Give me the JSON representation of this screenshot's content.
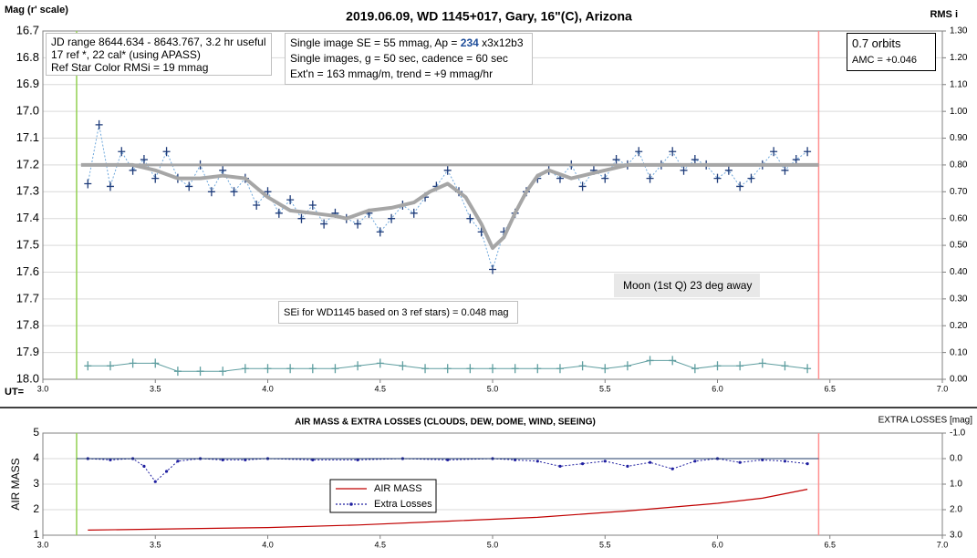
{
  "chart_data": [
    {
      "type": "line",
      "title": "2019.06.09, WD 1145+017, Gary, 16\"(C), Arizona",
      "y_label": "Mag (r' scale)",
      "y2_label": "RMS i",
      "x_label": "UT=",
      "xlim": [
        3.0,
        7.0
      ],
      "xticks": [
        {
          "value": 3.0,
          "label": "3.0"
        },
        3.5,
        {
          "value": 4.0,
          "label": "4.0"
        },
        4.5,
        {
          "value": 5.0,
          "label": "5.0"
        },
        5.5,
        {
          "value": 6.0,
          "label": "6.0"
        },
        6.5,
        {
          "value": 7.0,
          "label": "7.0"
        }
      ],
      "ylim": [
        16.7,
        18.0
      ],
      "y_inverted": true,
      "yticks": [
        16.7,
        16.8,
        16.9,
        {
          "value": 17.0,
          "label": "17.0"
        },
        17.1,
        17.2,
        17.3,
        17.4,
        17.5,
        17.6,
        17.7,
        17.8,
        17.9,
        {
          "value": 18.0,
          "label": "18.0"
        }
      ],
      "y2lim": [
        0,
        1.3
      ],
      "y2ticks": [
        {
          "value": 0,
          "label": "0.00"
        },
        {
          "value": 0.1,
          "label": "0.10"
        },
        {
          "value": 0.2,
          "label": "0.20"
        },
        {
          "value": 0.3,
          "label": "0.30"
        },
        {
          "value": 0.4,
          "label": "0.40"
        },
        {
          "value": 0.5,
          "label": "0.50"
        },
        {
          "value": 0.6,
          "label": "0.60"
        },
        {
          "value": 0.7,
          "label": "0.70"
        },
        {
          "value": 0.8,
          "label": "0.80"
        },
        {
          "value": 0.9,
          "label": "0.90"
        },
        {
          "value": 1.0,
          "label": "1.00"
        },
        {
          "value": 1.1,
          "label": "1.10"
        },
        {
          "value": 1.2,
          "label": "1.20"
        },
        {
          "value": 1.3,
          "label": "1.30"
        }
      ],
      "grid": true,
      "vlines": [
        {
          "x": 3.15,
          "color": "#92d050"
        },
        {
          "x": 6.45,
          "color": "#ff9090"
        }
      ],
      "series": [
        {
          "color": "#1f3c7a",
          "line_color": "#6fa8dc",
          "dash": true,
          "marker": "plus",
          "width": 1,
          "x": [
            3.2,
            3.25,
            3.3,
            3.35,
            3.4,
            3.45,
            3.5,
            3.55,
            3.6,
            3.65,
            3.7,
            3.75,
            3.8,
            3.85,
            3.9,
            3.95,
            4.0,
            4.05,
            4.1,
            4.15,
            4.2,
            4.25,
            4.3,
            4.35,
            4.4,
            4.45,
            4.5,
            4.55,
            4.6,
            4.65,
            4.7,
            4.75,
            4.8,
            4.85,
            4.9,
            4.95,
            5.0,
            5.05,
            5.1,
            5.15,
            5.2,
            5.25,
            5.3,
            5.35,
            5.4,
            5.45,
            5.5,
            5.55,
            5.6,
            5.65,
            5.7,
            5.75,
            5.8,
            5.85,
            5.9,
            5.95,
            6.0,
            6.05,
            6.1,
            6.15,
            6.2,
            6.25,
            6.3,
            6.35,
            6.4
          ],
          "values": [
            17.27,
            17.05,
            17.28,
            17.15,
            17.22,
            17.18,
            17.25,
            17.15,
            17.25,
            17.28,
            17.2,
            17.3,
            17.22,
            17.3,
            17.25,
            17.35,
            17.3,
            17.38,
            17.33,
            17.4,
            17.35,
            17.42,
            17.38,
            17.4,
            17.42,
            17.38,
            17.45,
            17.4,
            17.35,
            17.38,
            17.32,
            17.28,
            17.22,
            17.3,
            17.4,
            17.45,
            17.59,
            17.45,
            17.38,
            17.3,
            17.25,
            17.22,
            17.25,
            17.2,
            17.28,
            17.22,
            17.25,
            17.18,
            17.2,
            17.15,
            17.25,
            17.2,
            17.15,
            17.22,
            17.18,
            17.2,
            17.25,
            17.22,
            17.28,
            17.25,
            17.2,
            17.15,
            17.22,
            17.18,
            17.15
          ]
        },
        {
          "color": "#a6a6a6",
          "width": 4,
          "x": [
            3.17,
            3.4,
            3.5,
            3.6,
            3.7,
            3.8,
            3.9,
            4.0,
            4.1,
            4.2,
            4.3,
            4.35,
            4.45,
            4.55,
            4.65,
            4.72,
            4.8,
            4.88,
            4.95,
            5.0,
            5.05,
            5.1,
            5.15,
            5.2,
            5.25,
            5.35,
            5.45,
            5.55,
            5.6,
            6.45
          ],
          "values": [
            17.2,
            17.2,
            17.22,
            17.25,
            17.25,
            17.24,
            17.25,
            17.32,
            17.37,
            17.38,
            17.39,
            17.4,
            17.37,
            17.36,
            17.34,
            17.3,
            17.27,
            17.32,
            17.42,
            17.51,
            17.47,
            17.38,
            17.3,
            17.24,
            17.22,
            17.25,
            17.23,
            17.21,
            17.2,
            17.2
          ]
        },
        {
          "color": "#a6a6a6",
          "width": 3,
          "x": [
            3.17,
            6.45
          ],
          "values": [
            17.2,
            17.2
          ]
        },
        {
          "color": "#5f9ea0",
          "line_color": "#5f9ea0",
          "marker": "plus",
          "width": 1,
          "axis": "y2",
          "x": [
            3.2,
            3.3,
            3.4,
            3.5,
            3.6,
            3.7,
            3.8,
            3.9,
            4.0,
            4.1,
            4.2,
            4.3,
            4.4,
            4.5,
            4.6,
            4.7,
            4.8,
            4.9,
            5.0,
            5.1,
            5.2,
            5.3,
            5.4,
            5.5,
            5.6,
            5.7,
            5.8,
            5.9,
            6.0,
            6.1,
            6.2,
            6.3,
            6.4
          ],
          "values": [
            0.05,
            0.05,
            0.06,
            0.06,
            0.03,
            0.03,
            0.03,
            0.04,
            0.04,
            0.04,
            0.04,
            0.04,
            0.05,
            0.06,
            0.05,
            0.04,
            0.04,
            0.04,
            0.04,
            0.04,
            0.04,
            0.04,
            0.05,
            0.04,
            0.05,
            0.07,
            0.07,
            0.04,
            0.05,
            0.05,
            0.06,
            0.05,
            0.04
          ]
        }
      ],
      "annotations": {
        "info": [
          "JD range 8644.634 - 8643.767, 3.2 hr useful",
          "17 ref *, 22 cal* (using APASS)",
          "Ref Star Color RMSi = 19 mmag"
        ],
        "setup": [
          [
            "Single image SE = 55 mmag, Ap = ",
            "234",
            " x3x12b3"
          ],
          "Single images, g = 50 sec, cadence = 60 sec",
          "Ext'n = 163 mmag/m, trend = +9 mmag/hr"
        ],
        "orbits": [
          "0.7 orbits",
          "AMC = +0.046"
        ],
        "moon": "Moon (1st Q) 23 deg away",
        "sei": "SEi for WD1145 based on 3 ref stars) = 0.048 mag"
      }
    },
    {
      "type": "line",
      "title": "AIR MASS & EXTRA LOSSES (CLOUDS, DEW, DOME, WIND, SEEING)",
      "y_label": "AIR MASS",
      "y2_label": "EXTRA LOSSES [mag]",
      "xlim": [
        3.0,
        7.0
      ],
      "xticks": [
        {
          "value": 3.0,
          "label": "3.0"
        },
        3.5,
        {
          "value": 4.0,
          "label": "4.0"
        },
        4.5,
        {
          "value": 5.0,
          "label": "5.0"
        },
        5.5,
        {
          "value": 6.0,
          "label": "6.0"
        },
        6.5,
        {
          "value": 7.0,
          "label": "7.0"
        }
      ],
      "ylim": [
        1,
        5
      ],
      "yticks": [
        1,
        2,
        3,
        4,
        5
      ],
      "y2lim": [
        -1,
        3
      ],
      "y2_inverted": true,
      "y2ticks": [
        {
          "value": -1,
          "label": "-1.0"
        },
        {
          "value": 0,
          "label": "0.0"
        },
        {
          "value": 1,
          "label": "1.0"
        },
        {
          "value": 2,
          "label": "2.0"
        },
        {
          "value": 3,
          "label": "3.0"
        }
      ],
      "grid": true,
      "vlines": [
        {
          "x": 3.15,
          "color": "#92d050"
        },
        {
          "x": 6.45,
          "color": "#ff9090"
        }
      ],
      "series": [
        {
          "name": "AIR MASS",
          "color": "#c00000",
          "width": 1.2,
          "x": [
            3.2,
            3.6,
            4.0,
            4.4,
            4.8,
            5.2,
            5.6,
            6.0,
            6.2,
            6.4
          ],
          "values": [
            1.2,
            1.25,
            1.3,
            1.4,
            1.55,
            1.7,
            1.95,
            2.25,
            2.45,
            2.8
          ]
        },
        {
          "name": "Extra Losses",
          "color": "#1f1fa0",
          "line_color": "#1f1fa0",
          "dash": true,
          "marker": "dot",
          "width": 1,
          "axis": "y2",
          "x": [
            3.2,
            3.3,
            3.4,
            3.45,
            3.5,
            3.55,
            3.6,
            3.7,
            3.8,
            3.9,
            4.0,
            4.2,
            4.4,
            4.6,
            4.8,
            5.0,
            5.1,
            5.2,
            5.3,
            5.4,
            5.5,
            5.6,
            5.7,
            5.8,
            5.9,
            6.0,
            6.1,
            6.2,
            6.3,
            6.4
          ],
          "values": [
            0.0,
            0.05,
            0.0,
            0.3,
            0.9,
            0.5,
            0.1,
            0.0,
            0.05,
            0.05,
            0.0,
            0.05,
            0.05,
            0.0,
            0.05,
            0.0,
            0.05,
            0.1,
            0.3,
            0.2,
            0.1,
            0.3,
            0.15,
            0.4,
            0.1,
            0.0,
            0.15,
            0.05,
            0.1,
            0.2
          ]
        },
        {
          "color": "#1f3864",
          "width": 1,
          "axis": "y2",
          "x": [
            3.15,
            6.45
          ],
          "values": [
            0,
            0
          ]
        }
      ]
    }
  ]
}
